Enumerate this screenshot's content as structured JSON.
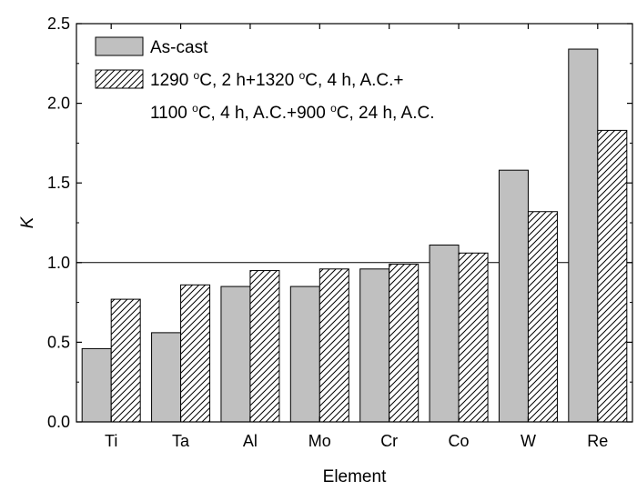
{
  "chart_data": {
    "type": "bar",
    "xlabel": "Element",
    "ylabel": "K",
    "ylim": [
      0,
      2.5
    ],
    "yticks": [
      "0.0",
      "0.5",
      "1.0",
      "1.5",
      "2.0",
      "2.5"
    ],
    "categories": [
      "Ti",
      "Ta",
      "Al",
      "Mo",
      "Cr",
      "Co",
      "W",
      "Re"
    ],
    "reference_line": 1.0,
    "series": [
      {
        "name": "As-cast",
        "fill": "solid-gray",
        "color": "#c0c0c0",
        "values": [
          0.46,
          0.56,
          0.85,
          0.85,
          0.96,
          1.11,
          1.58,
          2.34
        ]
      },
      {
        "name": "1290 °C, 2 h+1320 °C, 4 h, A.C.+ 1100 °C, 4 h, A.C.+900 °C, 24 h, A.C.",
        "fill": "hatched",
        "color": "#ffffff",
        "values": [
          0.77,
          0.86,
          0.95,
          0.96,
          0.99,
          1.06,
          1.32,
          1.83
        ]
      }
    ],
    "legend": {
      "placement": "top-left",
      "entries": [
        {
          "lines": [
            {
              "parts": [
                {
                  "t": "As-cast"
                }
              ]
            }
          ]
        },
        {
          "lines": [
            {
              "parts": [
                {
                  "t": "1290 "
                },
                {
                  "t": "o",
                  "sup": true
                },
                {
                  "t": "C, 2 h+1320 "
                },
                {
                  "t": "o",
                  "sup": true
                },
                {
                  "t": "C, 4 h, A.C.+"
                }
              ]
            },
            {
              "parts": [
                {
                  "t": "1100 "
                },
                {
                  "t": "o",
                  "sup": true
                },
                {
                  "t": "C, 4 h, A.C.+900 "
                },
                {
                  "t": "o",
                  "sup": true
                },
                {
                  "t": "C, 24 h, A.C."
                }
              ]
            }
          ]
        }
      ]
    }
  }
}
